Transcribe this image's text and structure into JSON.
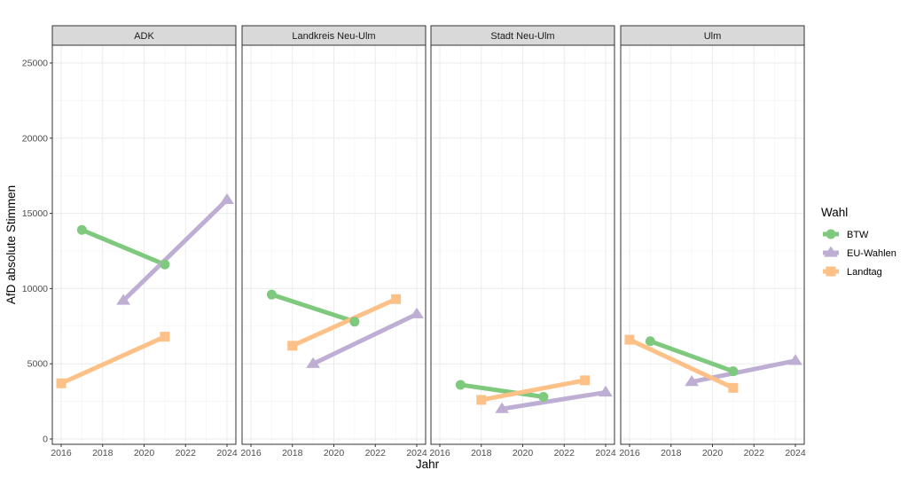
{
  "chart_data": {
    "type": "line",
    "xlabel": "Jahr",
    "ylabel": "AfD absolute Stimmen",
    "xlim": [
      2016,
      2024
    ],
    "ylim": [
      0,
      25000
    ],
    "x_ticks": [
      2016,
      2018,
      2020,
      2022,
      2024
    ],
    "y_ticks": [
      0,
      5000,
      10000,
      15000,
      20000,
      25000
    ],
    "y_tick_labels": [
      "0",
      "5000",
      "10000",
      "15000",
      "20000",
      "25000"
    ],
    "grid": true,
    "legend": {
      "title": "Wahl",
      "placement": "right"
    },
    "series_styles": [
      {
        "name": "BTW",
        "color": "#7fc97f",
        "marker": "circle"
      },
      {
        "name": "EU-Wahlen",
        "color": "#beaed4",
        "marker": "triangle"
      },
      {
        "name": "Landtag",
        "color": "#fdc086",
        "marker": "square"
      }
    ],
    "panels": [
      {
        "title": "ADK",
        "series": [
          {
            "name": "BTW",
            "x": [
              2017,
              2021
            ],
            "y": [
              13900,
              11600
            ]
          },
          {
            "name": "EU-Wahlen",
            "x": [
              2019,
              2024
            ],
            "y": [
              9200,
              15900
            ]
          },
          {
            "name": "Landtag",
            "x": [
              2016,
              2021
            ],
            "y": [
              3700,
              6800
            ]
          }
        ]
      },
      {
        "title": "Landkreis Neu-Ulm",
        "series": [
          {
            "name": "BTW",
            "x": [
              2017,
              2021
            ],
            "y": [
              9600,
              7800
            ]
          },
          {
            "name": "EU-Wahlen",
            "x": [
              2019,
              2024
            ],
            "y": [
              5000,
              8300
            ]
          },
          {
            "name": "Landtag",
            "x": [
              2018,
              2023
            ],
            "y": [
              6200,
              9300
            ]
          }
        ]
      },
      {
        "title": "Stadt Neu-Ulm",
        "series": [
          {
            "name": "BTW",
            "x": [
              2017,
              2021
            ],
            "y": [
              3600,
              2800
            ]
          },
          {
            "name": "EU-Wahlen",
            "x": [
              2019,
              2024
            ],
            "y": [
              2000,
              3100
            ]
          },
          {
            "name": "Landtag",
            "x": [
              2018,
              2023
            ],
            "y": [
              2600,
              3900
            ]
          }
        ]
      },
      {
        "title": "Ulm",
        "series": [
          {
            "name": "BTW",
            "x": [
              2017,
              2021
            ],
            "y": [
              6500,
              4500
            ]
          },
          {
            "name": "EU-Wahlen",
            "x": [
              2019,
              2024
            ],
            "y": [
              3800,
              5200
            ]
          },
          {
            "name": "Landtag",
            "x": [
              2016,
              2021
            ],
            "y": [
              6600,
              3400
            ]
          }
        ]
      }
    ]
  }
}
